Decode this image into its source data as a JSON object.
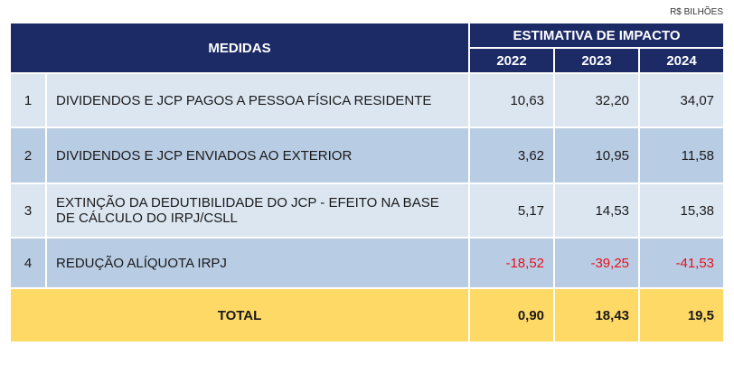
{
  "unit": "R$ BILHÕES",
  "table": {
    "header": {
      "measures": "MEDIDAS",
      "impact": "ESTIMATIVA DE IMPACTO",
      "years": [
        "2022",
        "2023",
        "2024"
      ]
    },
    "rows": [
      [
        "1",
        "DIVIDENDOS E JCP PAGOS A PESSOA FÍSICA RESIDENTE",
        "10,63",
        "32,20",
        "34,07"
      ],
      [
        "2",
        "DIVIDENDOS E JCP ENVIADOS AO EXTERIOR",
        "3,62",
        "10,95",
        "11,58"
      ],
      [
        "3",
        "EXTINÇÃO DA DEDUTIBILIDADE DO JCP - EFEITO NA BASE DE CÁLCULO DO IRPJ/CSLL",
        "5,17",
        "14,53",
        "15,38"
      ],
      [
        "4",
        "REDUÇÃO ALÍQUOTA IRPJ",
        "-18,52",
        "-39,25",
        "-41,53"
      ]
    ],
    "total": {
      "label": "TOTAL",
      "values": [
        "0,90",
        "18,43",
        "19,5"
      ]
    }
  }
}
